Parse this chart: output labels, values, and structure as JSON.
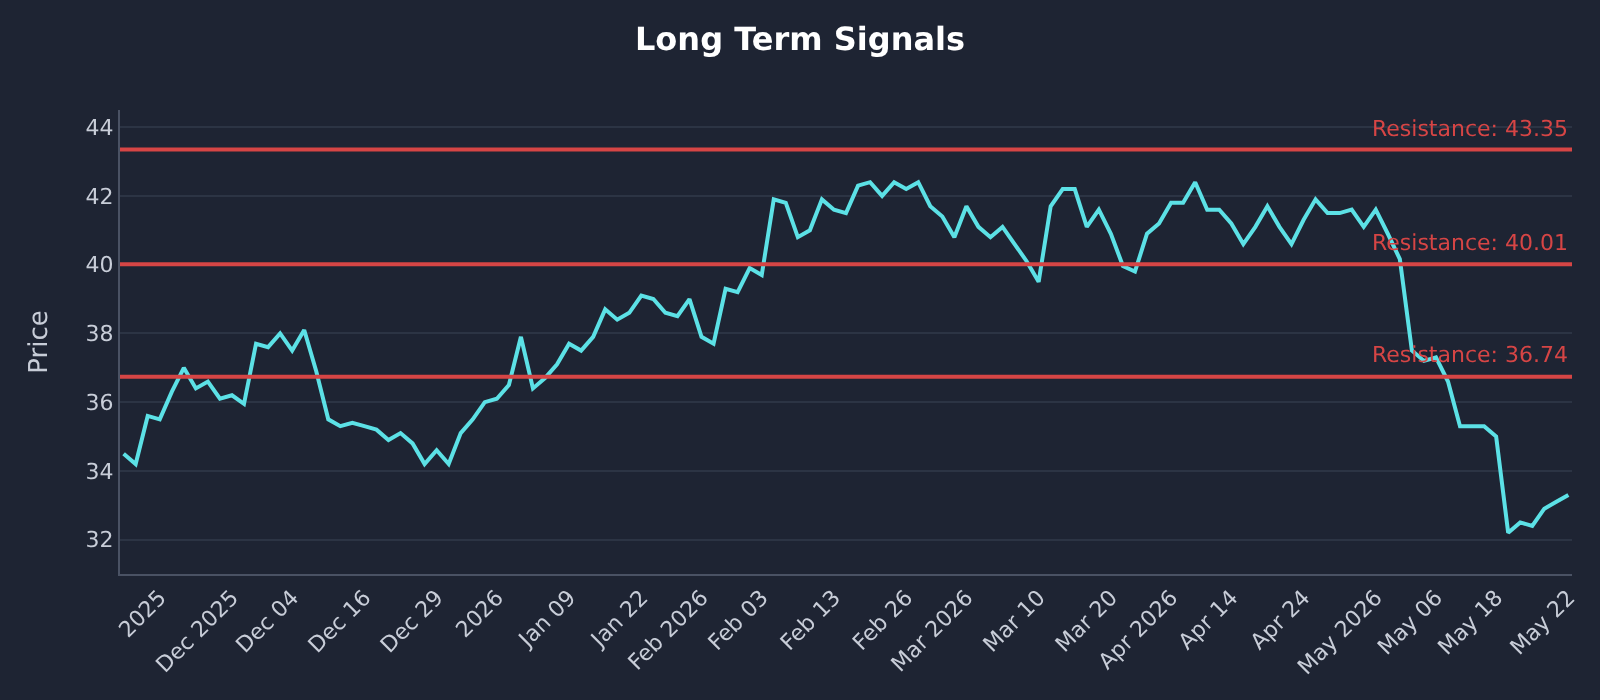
{
  "chart_data": {
    "type": "line",
    "title": "Long Term Signals",
    "ylabel": "Price",
    "categories": [
      null,
      null,
      null,
      "2025",
      null,
      null,
      null,
      null,
      null,
      "Dec 2025",
      null,
      null,
      null,
      null,
      "Dec 04",
      null,
      null,
      null,
      null,
      null,
      "Dec 16",
      null,
      null,
      null,
      null,
      null,
      "Dec 29",
      null,
      null,
      null,
      null,
      "2026",
      null,
      null,
      null,
      null,
      null,
      "Jan 09",
      null,
      null,
      null,
      null,
      null,
      "Jan 22",
      null,
      null,
      null,
      null,
      "Feb 2026",
      null,
      null,
      null,
      null,
      "Feb 03",
      null,
      null,
      null,
      null,
      null,
      "Feb 13",
      null,
      null,
      null,
      null,
      null,
      "Feb 26",
      null,
      null,
      null,
      null,
      "Mar 2026",
      null,
      null,
      null,
      null,
      null,
      "Mar 10",
      null,
      null,
      null,
      null,
      null,
      "Mar 20",
      null,
      null,
      null,
      null,
      "Apr 2026",
      null,
      null,
      null,
      null,
      "Apr 14",
      null,
      null,
      null,
      null,
      null,
      "Apr 24",
      null,
      null,
      null,
      null,
      null,
      "May 2026",
      null,
      null,
      null,
      null,
      "May 06",
      null,
      null,
      null,
      null,
      "May 18",
      null,
      null,
      null,
      null,
      null,
      "May 22"
    ],
    "series": [
      {
        "color": "#5ce1e6",
        "values": [
          34.5,
          34.2,
          35.6,
          35.5,
          36.3,
          37.0,
          36.4,
          36.6,
          36.1,
          36.2,
          35.95,
          37.7,
          37.6,
          38.0,
          37.5,
          38.1,
          36.9,
          35.5,
          35.3,
          35.4,
          35.3,
          35.2,
          34.9,
          35.1,
          34.8,
          34.2,
          34.6,
          34.2,
          35.1,
          35.5,
          36.0,
          36.1,
          36.5,
          37.9,
          36.4,
          36.7,
          37.1,
          37.7,
          37.5,
          37.9,
          38.7,
          38.4,
          38.6,
          39.1,
          39.0,
          38.6,
          38.5,
          39.0,
          37.9,
          37.7,
          39.3,
          39.2,
          39.9,
          39.7,
          41.9,
          41.8,
          40.8,
          41.0,
          41.9,
          41.6,
          41.5,
          42.3,
          42.4,
          42.0,
          42.4,
          42.2,
          42.4,
          41.7,
          41.4,
          40.8,
          41.7,
          41.1,
          40.8,
          41.1,
          40.6,
          40.1,
          39.5,
          41.7,
          42.2,
          42.2,
          41.1,
          41.6,
          40.9,
          39.96,
          39.8,
          40.9,
          41.2,
          41.8,
          41.8,
          42.4,
          41.6,
          41.6,
          41.2,
          40.6,
          41.1,
          41.7,
          41.1,
          40.6,
          41.3,
          41.9,
          41.5,
          41.5,
          41.6,
          41.1,
          41.6,
          40.9,
          40.16,
          37.5,
          37.2,
          37.3,
          36.6,
          35.3,
          35.3,
          35.3,
          35.0,
          32.2,
          32.5,
          32.4,
          32.9,
          33.1,
          33.3
        ]
      }
    ],
    "ylim": [
      31,
      44.5
    ],
    "yticks": [
      32,
      34,
      36,
      38,
      40,
      42,
      44
    ],
    "grid": "y",
    "marker": "none",
    "line_style": "solid",
    "ref_lines": [
      {
        "axis": "y",
        "value": 43.35,
        "label": "Resistance: 43.35",
        "color": "#d64545"
      },
      {
        "axis": "y",
        "value": 40.01,
        "label": "Resistance: 40.01",
        "color": "#d64545"
      },
      {
        "axis": "y",
        "value": 36.74,
        "label": "Resistance: 36.74",
        "color": "#d64545"
      }
    ]
  }
}
